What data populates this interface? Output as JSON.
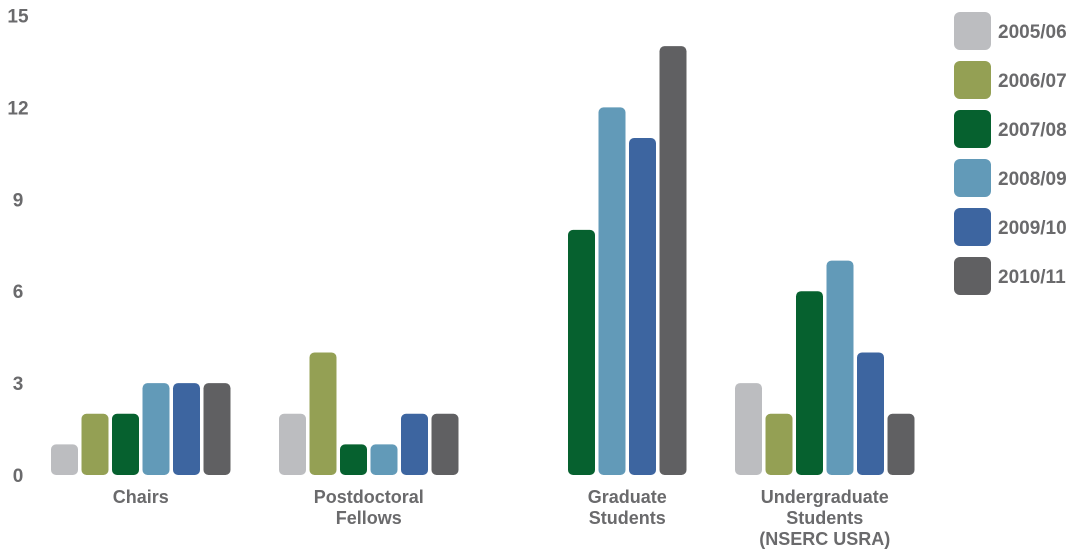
{
  "chart_data": {
    "type": "bar",
    "title": "",
    "xlabel": "",
    "ylabel": "",
    "ylim": [
      0,
      15
    ],
    "yticks": [
      0,
      3,
      6,
      9,
      12,
      15
    ],
    "grid": false,
    "legend_position": "right",
    "categories": [
      [
        "Chairs"
      ],
      [
        "Postdoctoral",
        "Fellows"
      ],
      [
        "Graduate",
        "Students"
      ],
      [
        "Undergraduate",
        "Students",
        "(NSERC USRA)"
      ]
    ],
    "series": [
      {
        "name": "2005/06",
        "color": "#bcbdc0",
        "values": [
          1,
          2,
          0,
          3
        ]
      },
      {
        "name": "2006/07",
        "color": "#94a054",
        "values": [
          2,
          4,
          0,
          2
        ]
      },
      {
        "name": "2007/08",
        "color": "#06612f",
        "values": [
          2,
          1,
          8,
          6
        ]
      },
      {
        "name": "2008/09",
        "color": "#629ab8",
        "values": [
          3,
          1,
          12,
          7
        ]
      },
      {
        "name": "2009/10",
        "color": "#3d65a0",
        "values": [
          3,
          2,
          11,
          4
        ]
      },
      {
        "name": "2010/11",
        "color": "#606062",
        "values": [
          3,
          2,
          14,
          2
        ]
      }
    ]
  }
}
